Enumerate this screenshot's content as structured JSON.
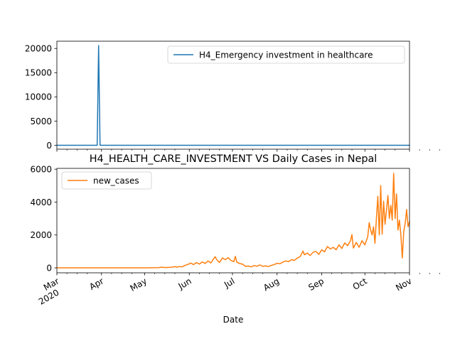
{
  "chart_data": [
    {
      "type": "line",
      "title": "",
      "xlabel": "",
      "ylabel": "",
      "xlim": [
        "2020-03-01",
        "2020-11-01"
      ],
      "ylim": [
        -800,
        21500
      ],
      "yticks": [
        0,
        5000,
        10000,
        15000,
        20000
      ],
      "grid": false,
      "legend_position": "top-right",
      "series": [
        {
          "name": "H4_Emergency investment in healthcare",
          "color": "#1f77b4",
          "points": [
            [
              "2020-03-01",
              0
            ],
            [
              "2020-03-29",
              0
            ],
            [
              "2020-03-30",
              20600
            ],
            [
              "2020-03-31",
              0
            ],
            [
              "2020-11-01",
              0
            ]
          ]
        }
      ]
    },
    {
      "type": "line",
      "title": "H4_HEALTH_CARE_INVESTMENT VS Daily Cases in Nepal",
      "xlabel": "Date",
      "ylabel": "",
      "xlim": [
        "2020-03-01",
        "2020-11-01"
      ],
      "ylim": [
        -300,
        6050
      ],
      "yticks": [
        0,
        2000,
        4000,
        6000
      ],
      "xticks": [
        {
          "date": "2020-03-01",
          "label": "Mar",
          "sublabel": "2020"
        },
        {
          "date": "2020-04-01",
          "label": "Apr"
        },
        {
          "date": "2020-05-01",
          "label": "May"
        },
        {
          "date": "2020-06-01",
          "label": "Jun"
        },
        {
          "date": "2020-07-01",
          "label": "Jul"
        },
        {
          "date": "2020-08-01",
          "label": "Aug"
        },
        {
          "date": "2020-09-01",
          "label": "Sep"
        },
        {
          "date": "2020-10-01",
          "label": "Oct"
        },
        {
          "date": "2020-11-01",
          "label": "Nov"
        }
      ],
      "grid": false,
      "legend_position": "top-left",
      "series": [
        {
          "name": "new_cases",
          "color": "#ff7f0e",
          "points": [
            [
              "2020-03-01",
              0
            ],
            [
              "2020-04-15",
              0
            ],
            [
              "2020-05-01",
              5
            ],
            [
              "2020-05-10",
              15
            ],
            [
              "2020-05-13",
              40
            ],
            [
              "2020-05-15",
              20
            ],
            [
              "2020-05-20",
              40
            ],
            [
              "2020-05-22",
              80
            ],
            [
              "2020-05-23",
              40
            ],
            [
              "2020-05-25",
              80
            ],
            [
              "2020-05-27",
              60
            ],
            [
              "2020-05-29",
              150
            ],
            [
              "2020-05-31",
              210
            ],
            [
              "2020-06-02",
              290
            ],
            [
              "2020-06-04",
              200
            ],
            [
              "2020-06-06",
              320
            ],
            [
              "2020-06-08",
              230
            ],
            [
              "2020-06-10",
              360
            ],
            [
              "2020-06-12",
              270
            ],
            [
              "2020-06-14",
              420
            ],
            [
              "2020-06-16",
              300
            ],
            [
              "2020-06-18",
              560
            ],
            [
              "2020-06-19",
              680
            ],
            [
              "2020-06-20",
              500
            ],
            [
              "2020-06-22",
              330
            ],
            [
              "2020-06-24",
              600
            ],
            [
              "2020-06-26",
              500
            ],
            [
              "2020-06-28",
              620
            ],
            [
              "2020-06-30",
              450
            ],
            [
              "2020-07-02",
              380
            ],
            [
              "2020-07-03",
              700
            ],
            [
              "2020-07-04",
              350
            ],
            [
              "2020-07-06",
              260
            ],
            [
              "2020-07-08",
              230
            ],
            [
              "2020-07-10",
              90
            ],
            [
              "2020-07-12",
              110
            ],
            [
              "2020-07-14",
              60
            ],
            [
              "2020-07-16",
              140
            ],
            [
              "2020-07-18",
              100
            ],
            [
              "2020-07-20",
              180
            ],
            [
              "2020-07-22",
              90
            ],
            [
              "2020-07-24",
              120
            ],
            [
              "2020-07-26",
              80
            ],
            [
              "2020-07-28",
              150
            ],
            [
              "2020-07-30",
              200
            ],
            [
              "2020-08-01",
              280
            ],
            [
              "2020-08-03",
              250
            ],
            [
              "2020-08-05",
              350
            ],
            [
              "2020-08-07",
              420
            ],
            [
              "2020-08-09",
              380
            ],
            [
              "2020-08-11",
              500
            ],
            [
              "2020-08-13",
              450
            ],
            [
              "2020-08-15",
              600
            ],
            [
              "2020-08-17",
              680
            ],
            [
              "2020-08-19",
              1020
            ],
            [
              "2020-08-20",
              800
            ],
            [
              "2020-08-22",
              900
            ],
            [
              "2020-08-24",
              750
            ],
            [
              "2020-08-26",
              950
            ],
            [
              "2020-08-28",
              1000
            ],
            [
              "2020-08-30",
              820
            ],
            [
              "2020-09-01",
              1100
            ],
            [
              "2020-09-03",
              980
            ],
            [
              "2020-09-05",
              1300
            ],
            [
              "2020-09-07",
              1150
            ],
            [
              "2020-09-09",
              1250
            ],
            [
              "2020-09-11",
              1100
            ],
            [
              "2020-09-13",
              1400
            ],
            [
              "2020-09-15",
              1180
            ],
            [
              "2020-09-17",
              1520
            ],
            [
              "2020-09-19",
              1350
            ],
            [
              "2020-09-21",
              1650
            ],
            [
              "2020-09-22",
              2020
            ],
            [
              "2020-09-23",
              1200
            ],
            [
              "2020-09-25",
              1550
            ],
            [
              "2020-09-27",
              1250
            ],
            [
              "2020-09-29",
              1650
            ],
            [
              "2020-10-01",
              1400
            ],
            [
              "2020-10-03",
              1900
            ],
            [
              "2020-10-04",
              2750
            ],
            [
              "2020-10-05",
              2300
            ],
            [
              "2020-10-06",
              2000
            ],
            [
              "2020-10-07",
              2500
            ],
            [
              "2020-10-08",
              1500
            ],
            [
              "2020-10-09",
              3000
            ],
            [
              "2020-10-10",
              4350
            ],
            [
              "2020-10-11",
              2000
            ],
            [
              "2020-10-12",
              5000
            ],
            [
              "2020-10-13",
              2050
            ],
            [
              "2020-10-14",
              4050
            ],
            [
              "2020-10-15",
              2650
            ],
            [
              "2020-10-16",
              3500
            ],
            [
              "2020-10-17",
              4400
            ],
            [
              "2020-10-18",
              3000
            ],
            [
              "2020-10-19",
              3800
            ],
            [
              "2020-10-20",
              2900
            ],
            [
              "2020-10-21",
              5750
            ],
            [
              "2020-10-22",
              3000
            ],
            [
              "2020-10-23",
              4500
            ],
            [
              "2020-10-24",
              2300
            ],
            [
              "2020-10-25",
              2900
            ],
            [
              "2020-10-26",
              2000
            ],
            [
              "2020-10-27",
              600
            ],
            [
              "2020-10-28",
              2200
            ],
            [
              "2020-10-29",
              2700
            ],
            [
              "2020-10-30",
              3550
            ],
            [
              "2020-10-31",
              2500
            ],
            [
              "2020-11-01",
              2800
            ]
          ]
        }
      ]
    }
  ]
}
